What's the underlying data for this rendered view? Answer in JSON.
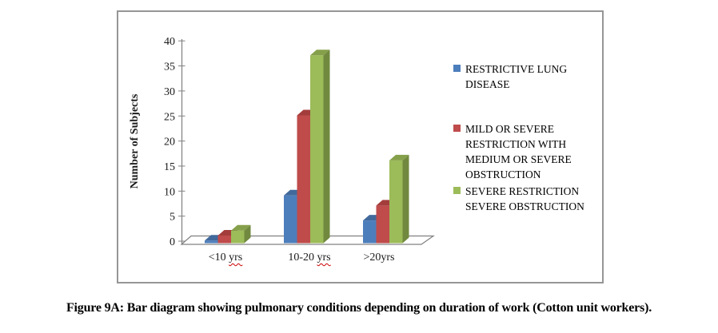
{
  "figure_caption": "Figure 9A: Bar diagram showing pulmonary conditions depending on duration of work (Cotton unit workers).",
  "chart_data": {
    "type": "bar",
    "style": "3d-clustered-column",
    "title": "",
    "xlabel": "",
    "ylabel": "Number of Subjects",
    "ylim": [
      0,
      40
    ],
    "ytick_interval": 5,
    "yticks": [
      0,
      5,
      10,
      15,
      20,
      25,
      30,
      35,
      40
    ],
    "grid": false,
    "legend_position": "right",
    "categories": [
      {
        "text": "<10 ",
        "squiggle_text": "yrs"
      },
      {
        "text": "10-20 ",
        "squiggle_text": "yrs"
      },
      {
        "text": ">20yrs",
        "squiggle_text": ""
      }
    ],
    "series": [
      {
        "name": "RESTRICTIVE LUNG DISEASE",
        "values": [
          1,
          10,
          5
        ],
        "color": "#4d7ebc",
        "color_top": "#41699c",
        "color_side": "#315c8d"
      },
      {
        "name": "MILD OR SEVERE RESTRICTION WITH MEDIUM OR SEVERE OBSTRUCTION",
        "values": [
          2,
          26,
          8
        ],
        "color": "#bf4b4b",
        "color_top": "#a33d3c",
        "color_side": "#8e3434"
      },
      {
        "name": "SEVERE RESTRICTION SEVERE OBSTRUCTION",
        "values": [
          3,
          38,
          17
        ],
        "color": "#9cbb59",
        "color_top": "#85a04a",
        "color_side": "#71893f"
      }
    ]
  },
  "colors": {
    "frame_border": "#969696",
    "axis": "#808080",
    "floor_edge": "#808080",
    "spellcheck_underline": "#cc0000",
    "text": "#000000",
    "background": "#ffffff"
  }
}
